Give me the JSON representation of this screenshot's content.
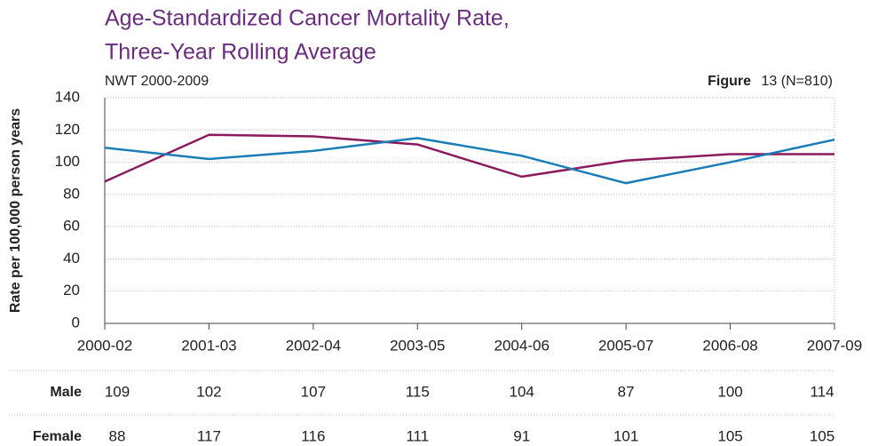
{
  "chart_data": {
    "type": "line",
    "title": [
      "Age-Standardized Cancer Mortality Rate,",
      "Three-Year Rolling Average"
    ],
    "subtitle": "NWT 2000-2009",
    "figure_label": "Figure",
    "figure_note": "13 (N=810)",
    "ylabel": "Rate per 100,000 person years",
    "categories": [
      "2000-02",
      "2001-03",
      "2002-04",
      "2003-05",
      "2004-06",
      "2005-07",
      "2006-08",
      "2007-09"
    ],
    "series": [
      {
        "name": "Male",
        "color": "#1b7db8",
        "values": [
          109,
          102,
          107,
          115,
          104,
          87,
          100,
          114
        ]
      },
      {
        "name": "Female",
        "color": "#8c1a5e",
        "values": [
          88,
          117,
          116,
          111,
          91,
          101,
          105,
          105
        ]
      }
    ],
    "ylim": [
      0,
      140
    ],
    "yticks": [
      0,
      20,
      40,
      60,
      80,
      100,
      120,
      140
    ],
    "grid": true
  }
}
